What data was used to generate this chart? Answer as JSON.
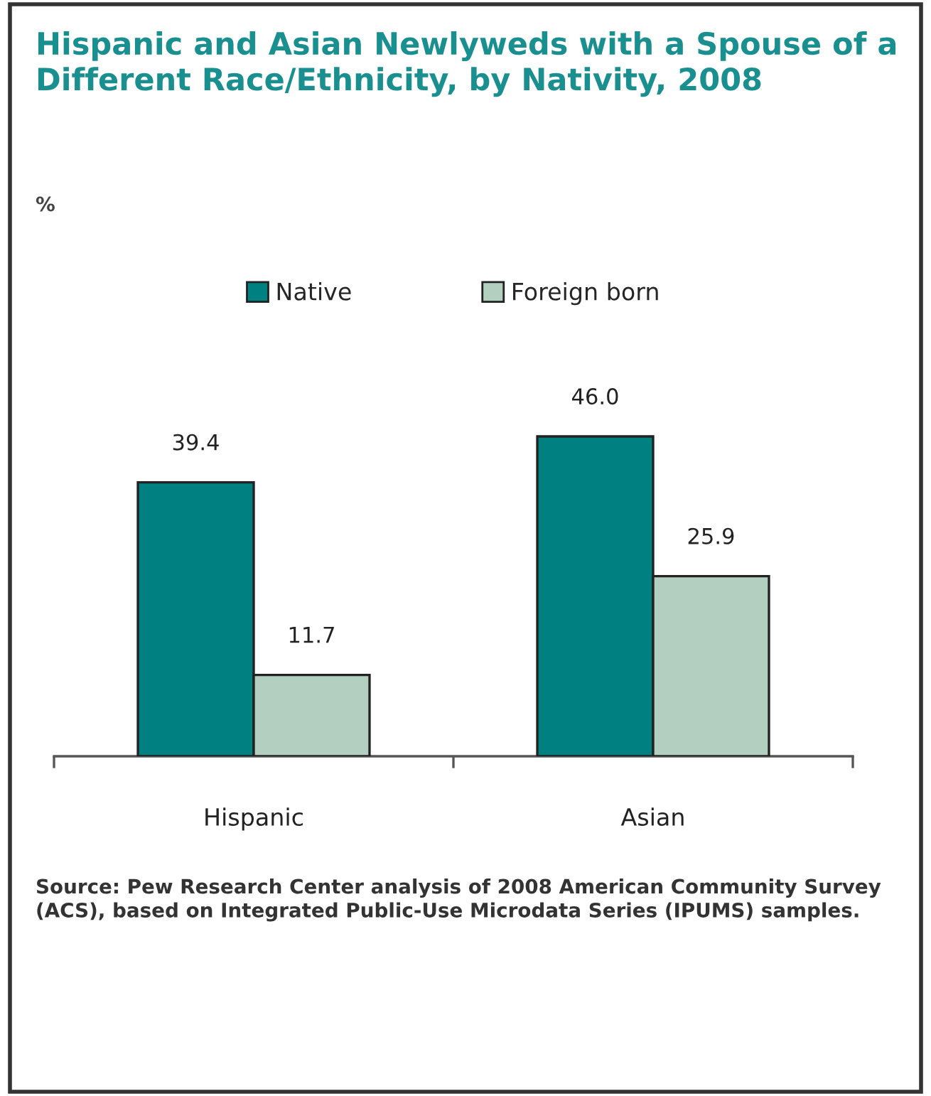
{
  "chart_data": {
    "type": "bar",
    "title": "Hispanic and Asian Newlyweds with a Spouse of a Different Race/Ethnicity, by Nativity, 2008",
    "subtitle": "%",
    "categories": [
      "Hispanic",
      "Asian"
    ],
    "series": [
      {
        "name": "Native",
        "color": "#008080",
        "values": [
          39.4,
          46.0
        ],
        "value_labels": [
          "39.4",
          "46.0"
        ]
      },
      {
        "name": "Foreign born",
        "color": "#b3cfbf",
        "values": [
          11.7,
          25.9
        ],
        "value_labels": [
          "11.7",
          "25.9"
        ]
      }
    ],
    "legend": "top",
    "annotations": [
      "Source: Pew Research Center analysis of 2008 American Community Survey (ACS), based on Integrated Public-Use Microdata Series (IPUMS) samples."
    ]
  }
}
